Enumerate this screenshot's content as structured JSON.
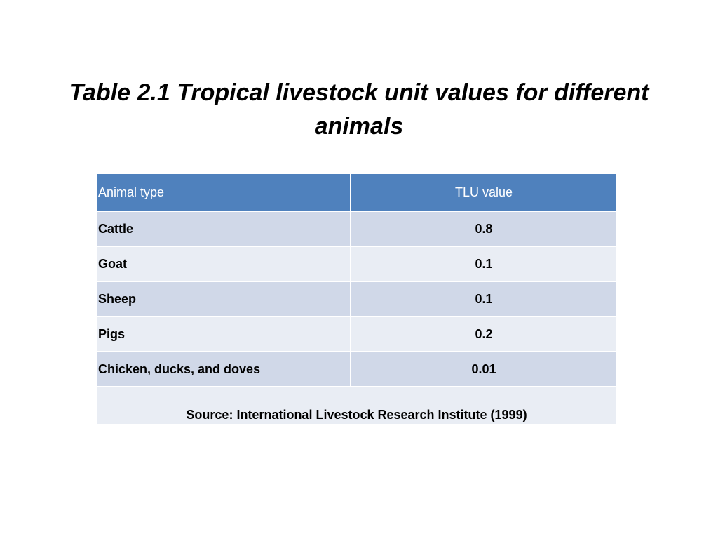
{
  "slide": {
    "title": "Table 2.1 Tropical livestock unit values for different animals"
  },
  "table": {
    "headers": [
      "Animal type",
      "TLU value"
    ],
    "rows": [
      {
        "animal": "Cattle",
        "tlu": "0.8"
      },
      {
        "animal": "Goat",
        "tlu": "0.1"
      },
      {
        "animal": "Sheep",
        "tlu": "0.1"
      },
      {
        "animal": "Pigs",
        "tlu": "0.2"
      },
      {
        "animal": "Chicken, ducks, and doves",
        "tlu": "0.01"
      }
    ],
    "source": "Source: International Livestock Research Institute (1999)"
  },
  "colors": {
    "header_bg": "#4f81bd",
    "row_odd_bg": "#d0d8e8",
    "row_even_bg": "#e9edf4"
  }
}
